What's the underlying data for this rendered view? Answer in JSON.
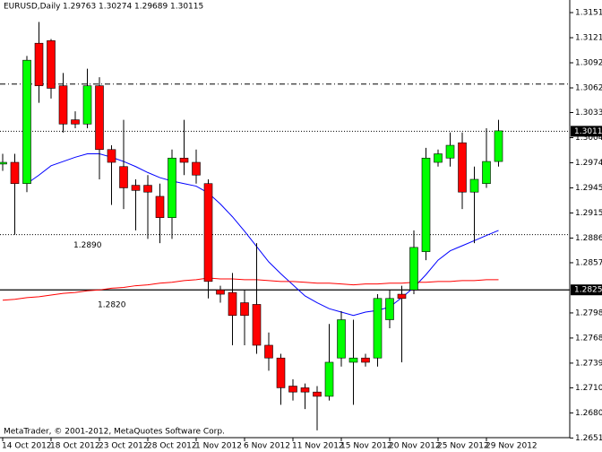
{
  "chart_data": {
    "type": "candlestick",
    "title": "EURUSD,Daily",
    "header_values": [
      1.29763,
      1.30274,
      1.29689,
      1.30115
    ],
    "footer": "MetaTrader, © 2001-2012, MetaQuotes Software Corp.",
    "categories": [
      "14 Oct 2012",
      null,
      null,
      null,
      "18 Oct 2012",
      null,
      null,
      null,
      "23 Oct 2012",
      null,
      null,
      null,
      "28 Oct 2012",
      null,
      null,
      null,
      "1 Nov 2012",
      null,
      null,
      null,
      "6 Nov 2012",
      null,
      null,
      null,
      "11 Nov 2012",
      null,
      null,
      null,
      "15 Nov 2012",
      null,
      null,
      null,
      "20 Nov 2012",
      null,
      null,
      null,
      "25 Nov 2012",
      null,
      null,
      null,
      "29 Nov 2012",
      null
    ],
    "open": [
      1.2973,
      1.2975,
      1.295,
      1.3115,
      1.3118,
      1.3065,
      1.3025,
      1.302,
      1.3065,
      1.299,
      1.297,
      1.2948,
      1.2948,
      1.2935,
      1.291,
      1.298,
      1.2975,
      1.295,
      1.2825,
      1.2822,
      1.281,
      1.2808,
      1.276,
      1.2745,
      1.2712,
      1.271,
      1.2705,
      1.27,
      1.2745,
      1.274,
      1.2745,
      1.2745,
      1.279,
      1.282,
      1.2825,
      1.287,
      1.2975,
      1.298,
      1.2998,
      1.294,
      1.295,
      1.2976
    ],
    "high": [
      1.2985,
      1.2985,
      1.31,
      1.314,
      1.312,
      1.308,
      1.3035,
      1.3085,
      1.3075,
      1.2995,
      1.3025,
      1.2955,
      1.296,
      1.295,
      1.299,
      1.3025,
      1.299,
      1.2955,
      1.283,
      1.2845,
      1.2825,
      1.288,
      1.2775,
      1.275,
      1.272,
      1.2715,
      1.2712,
      1.2785,
      1.28,
      1.279,
      1.275,
      1.282,
      1.2825,
      1.283,
      1.2895,
      1.2992,
      1.299,
      1.301,
      1.301,
      1.297,
      1.3015,
      1.3025
    ],
    "low": [
      1.2965,
      1.289,
      1.294,
      1.3045,
      1.305,
      1.301,
      1.3015,
      1.3015,
      1.2955,
      1.2925,
      1.292,
      1.2895,
      1.2885,
      1.288,
      1.2885,
      1.296,
      1.295,
      1.2815,
      1.281,
      1.276,
      1.276,
      1.275,
      1.273,
      1.269,
      1.2695,
      1.2685,
      1.266,
      1.2695,
      1.2735,
      1.269,
      1.2735,
      1.2735,
      1.278,
      1.274,
      1.282,
      1.286,
      1.297,
      1.297,
      1.292,
      1.288,
      1.2945,
      1.297
    ],
    "close": [
      1.2975,
      1.295,
      1.3095,
      1.3065,
      1.3062,
      1.302,
      1.302,
      1.3065,
      1.299,
      1.2975,
      1.2945,
      1.2942,
      1.294,
      1.291,
      1.298,
      1.2975,
      1.296,
      1.2835,
      1.282,
      1.2795,
      1.2795,
      1.276,
      1.2745,
      1.271,
      1.2705,
      1.2705,
      1.27,
      1.274,
      1.279,
      1.2745,
      1.274,
      1.2815,
      1.2815,
      1.2815,
      1.2875,
      1.298,
      1.2985,
      1.2995,
      1.294,
      1.2955,
      1.2976,
      1.3012
    ],
    "up_color": "#00ff00",
    "down_color": "#ff0000",
    "lines": [
      {
        "color": "#0000ff",
        "values": [
          null,
          null,
          1.295,
          1.296,
          1.2971,
          1.2976,
          1.2981,
          1.2985,
          1.2985,
          1.2981,
          1.2976,
          1.297,
          1.2963,
          1.2957,
          1.2953,
          1.295,
          1.2947,
          1.2939,
          1.2926,
          1.2911,
          1.2894,
          1.2876,
          1.2858,
          1.2844,
          1.2831,
          1.2818,
          1.281,
          1.2803,
          1.2799,
          1.2795,
          1.2799,
          1.2801,
          1.2805,
          1.2816,
          1.2828,
          1.2843,
          1.286,
          1.2871,
          1.2877,
          1.2883,
          1.2889,
          1.2895
        ]
      },
      {
        "color": "#ff0000",
        "values": [
          1.2813,
          1.2814,
          1.2816,
          1.2817,
          1.2819,
          1.2821,
          1.2822,
          1.2824,
          1.2825,
          1.2827,
          1.2828,
          1.283,
          1.2831,
          1.2833,
          1.2834,
          1.2836,
          1.2837,
          1.2839,
          1.2838,
          1.2838,
          1.2837,
          1.2837,
          1.2836,
          1.2835,
          1.2835,
          1.2834,
          1.2833,
          1.2833,
          1.2832,
          1.2831,
          1.2832,
          1.2832,
          1.2833,
          1.2833,
          1.2834,
          1.2834,
          1.2835,
          1.2835,
          1.2836,
          1.2836,
          1.2837,
          1.2837
        ]
      }
    ],
    "hlines": [
      {
        "value": 1.3067,
        "style": "dashdot"
      },
      {
        "value": 1.30115,
        "style": "dotted"
      },
      {
        "value": 1.289,
        "style": "dotted"
      },
      {
        "value": 1.28251,
        "style": "solid"
      }
    ],
    "annotations": [
      {
        "value": 1.289,
        "label": "1.2890"
      },
      {
        "value": 1.282,
        "label": "1.2820"
      }
    ],
    "price_marks": [
      1.30115,
      1.28251
    ],
    "ylim": [
      1.26514,
      1.31658
    ],
    "yticks": [
      {
        "value": 1.3151,
        "label": "1.31510"
      },
      {
        "value": 1.31215,
        "label": "1.31215"
      },
      {
        "value": 1.3092,
        "label": "1.30920"
      },
      {
        "value": 1.30625,
        "label": "1.30625"
      },
      {
        "value": 1.30335,
        "label": "1.30335"
      },
      {
        "value": 1.3004,
        "label": "1.30040"
      },
      {
        "value": 1.29745,
        "label": "1.29745"
      },
      {
        "value": 1.2945,
        "label": "1.29450"
      },
      {
        "value": 1.29155,
        "label": "1.29155"
      },
      {
        "value": 1.2886,
        "label": "1.28860"
      },
      {
        "value": 1.2857,
        "label": "1.28570"
      },
      {
        "value": 1.2798,
        "label": "1.27980"
      },
      {
        "value": 1.27685,
        "label": "1.27685"
      },
      {
        "value": 1.2739,
        "label": "1.27390"
      },
      {
        "value": 1.271,
        "label": "1.27100"
      },
      {
        "value": 1.26805,
        "label": "1.26805"
      },
      {
        "value": 1.2651,
        "label": "1.26510"
      }
    ]
  }
}
